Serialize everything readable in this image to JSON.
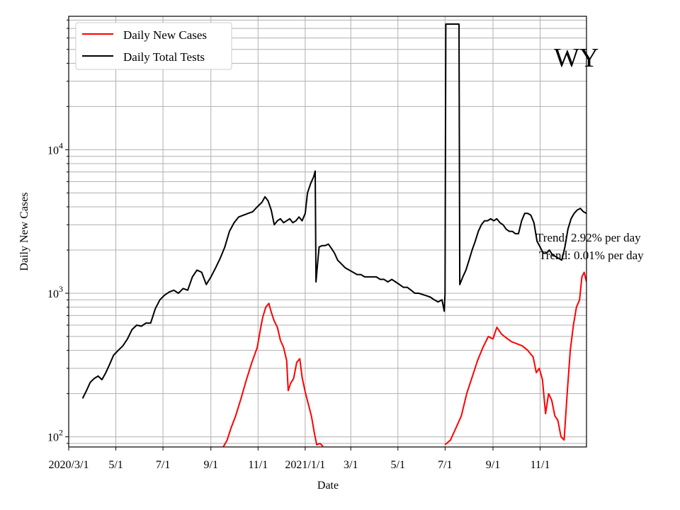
{
  "chart_data": {
    "type": "line",
    "title": "",
    "xlabel": "Date",
    "ylabel": "Daily New Cases",
    "y_scale": "log",
    "ylim": [
      85,
      85000
    ],
    "xlim": [
      "2020-03-01",
      "2021-12-31"
    ],
    "grid": true,
    "legend_position": "top-left",
    "state_label": "WY",
    "annotations": [
      "Trend: 2.92% per day",
      "Trend: 0.01% per day"
    ],
    "x_ticks": [
      {
        "date": "2020-03-01",
        "label": "2020/3/1"
      },
      {
        "date": "2020-05-01",
        "label": "5/1"
      },
      {
        "date": "2020-07-01",
        "label": "7/1"
      },
      {
        "date": "2020-09-01",
        "label": "9/1"
      },
      {
        "date": "2020-11-01",
        "label": "11/1"
      },
      {
        "date": "2021-01-01",
        "label": "2021/1/1"
      },
      {
        "date": "2021-03-01",
        "label": "3/1"
      },
      {
        "date": "2021-05-01",
        "label": "5/1"
      },
      {
        "date": "2021-07-01",
        "label": "7/1"
      },
      {
        "date": "2021-09-01",
        "label": "9/1"
      },
      {
        "date": "2021-11-01",
        "label": "11/1"
      }
    ],
    "y_ticks": [
      {
        "value": 100,
        "base": "10",
        "exp": "2"
      },
      {
        "value": 1000,
        "base": "10",
        "exp": "3"
      },
      {
        "value": 10000,
        "base": "10",
        "exp": "4"
      }
    ],
    "series": [
      {
        "name": "Daily New Cases",
        "color": "#ff0000",
        "points": [
          [
            "2020-09-17",
            85
          ],
          [
            "2020-09-22",
            95
          ],
          [
            "2020-09-27",
            115
          ],
          [
            "2020-10-03",
            140
          ],
          [
            "2020-10-10",
            185
          ],
          [
            "2020-10-17",
            250
          ],
          [
            "2020-10-24",
            330
          ],
          [
            "2020-10-31",
            420
          ],
          [
            "2020-11-04",
            560
          ],
          [
            "2020-11-07",
            680
          ],
          [
            "2020-11-11",
            800
          ],
          [
            "2020-11-15",
            850
          ],
          [
            "2020-11-18",
            740
          ],
          [
            "2020-11-22",
            640
          ],
          [
            "2020-11-26",
            580
          ],
          [
            "2020-11-30",
            470
          ],
          [
            "2020-12-04",
            420
          ],
          [
            "2020-12-08",
            340
          ],
          [
            "2020-12-10",
            210
          ],
          [
            "2020-12-13",
            235
          ],
          [
            "2020-12-17",
            255
          ],
          [
            "2020-12-21",
            330
          ],
          [
            "2020-12-25",
            350
          ],
          [
            "2020-12-28",
            260
          ],
          [
            "2021-01-01",
            205
          ],
          [
            "2021-01-05",
            170
          ],
          [
            "2021-01-09",
            140
          ],
          [
            "2021-01-13",
            105
          ],
          [
            "2021-01-16",
            88
          ],
          [
            "2021-01-20",
            90
          ],
          [
            "2021-01-24",
            86
          ]
        ]
      },
      {
        "name": "Daily New Cases",
        "color": "#ff0000",
        "points": [
          [
            "2021-07-01",
            88
          ],
          [
            "2021-07-08",
            95
          ],
          [
            "2021-07-15",
            115
          ],
          [
            "2021-07-22",
            140
          ],
          [
            "2021-07-29",
            200
          ],
          [
            "2021-08-05",
            260
          ],
          [
            "2021-08-12",
            340
          ],
          [
            "2021-08-19",
            420
          ],
          [
            "2021-08-26",
            500
          ],
          [
            "2021-09-01",
            480
          ],
          [
            "2021-09-06",
            580
          ],
          [
            "2021-09-12",
            520
          ],
          [
            "2021-09-18",
            490
          ],
          [
            "2021-09-25",
            460
          ],
          [
            "2021-10-02",
            445
          ],
          [
            "2021-10-09",
            430
          ],
          [
            "2021-10-16",
            400
          ],
          [
            "2021-10-23",
            360
          ],
          [
            "2021-10-27",
            280
          ],
          [
            "2021-10-31",
            300
          ],
          [
            "2021-11-04",
            250
          ],
          [
            "2021-11-08",
            145
          ],
          [
            "2021-11-12",
            200
          ],
          [
            "2021-11-16",
            180
          ],
          [
            "2021-11-20",
            140
          ],
          [
            "2021-11-24",
            130
          ],
          [
            "2021-11-28",
            100
          ],
          [
            "2021-12-02",
            95
          ],
          [
            "2021-12-06",
            200
          ],
          [
            "2021-12-10",
            400
          ],
          [
            "2021-12-14",
            600
          ],
          [
            "2021-12-18",
            800
          ],
          [
            "2021-12-22",
            900
          ],
          [
            "2021-12-25",
            1300
          ],
          [
            "2021-12-28",
            1400
          ],
          [
            "2021-12-31",
            1200
          ]
        ]
      },
      {
        "name": "Daily Total Tests",
        "color": "#000000",
        "points": [
          [
            "2020-03-19",
            185
          ],
          [
            "2020-03-24",
            210
          ],
          [
            "2020-03-29",
            240
          ],
          [
            "2020-04-03",
            255
          ],
          [
            "2020-04-08",
            265
          ],
          [
            "2020-04-13",
            250
          ],
          [
            "2020-04-18",
            280
          ],
          [
            "2020-04-23",
            320
          ],
          [
            "2020-04-28",
            370
          ],
          [
            "2020-05-04",
            400
          ],
          [
            "2020-05-10",
            430
          ],
          [
            "2020-05-16",
            480
          ],
          [
            "2020-05-22",
            560
          ],
          [
            "2020-05-28",
            600
          ],
          [
            "2020-06-03",
            590
          ],
          [
            "2020-06-09",
            620
          ],
          [
            "2020-06-15",
            620
          ],
          [
            "2020-06-21",
            780
          ],
          [
            "2020-06-27",
            900
          ],
          [
            "2020-07-03",
            970
          ],
          [
            "2020-07-09",
            1020
          ],
          [
            "2020-07-15",
            1050
          ],
          [
            "2020-07-21",
            1000
          ],
          [
            "2020-07-27",
            1080
          ],
          [
            "2020-08-02",
            1050
          ],
          [
            "2020-08-08",
            1300
          ],
          [
            "2020-08-14",
            1450
          ],
          [
            "2020-08-20",
            1400
          ],
          [
            "2020-08-26",
            1150
          ],
          [
            "2020-09-01",
            1300
          ],
          [
            "2020-09-07",
            1500
          ],
          [
            "2020-09-13",
            1750
          ],
          [
            "2020-09-19",
            2100
          ],
          [
            "2020-09-25",
            2700
          ],
          [
            "2020-10-01",
            3100
          ],
          [
            "2020-10-07",
            3400
          ],
          [
            "2020-10-13",
            3500
          ],
          [
            "2020-10-19",
            3600
          ],
          [
            "2020-10-25",
            3700
          ],
          [
            "2020-10-31",
            4000
          ],
          [
            "2020-11-06",
            4300
          ],
          [
            "2020-11-10",
            4700
          ],
          [
            "2020-11-14",
            4400
          ],
          [
            "2020-11-18",
            3800
          ],
          [
            "2020-11-22",
            3000
          ],
          [
            "2020-11-26",
            3200
          ],
          [
            "2020-11-30",
            3300
          ],
          [
            "2020-12-04",
            3100
          ],
          [
            "2020-12-08",
            3200
          ],
          [
            "2020-12-12",
            3300
          ],
          [
            "2020-12-16",
            3100
          ],
          [
            "2020-12-20",
            3200
          ],
          [
            "2020-12-24",
            3400
          ],
          [
            "2020-12-28",
            3200
          ],
          [
            "2021-01-01",
            3600
          ],
          [
            "2021-01-04",
            5000
          ],
          [
            "2021-01-08",
            5800
          ],
          [
            "2021-01-12",
            6500
          ],
          [
            "2021-01-14",
            7100
          ],
          [
            "2021-01-15",
            1200
          ],
          [
            "2021-01-17",
            1600
          ],
          [
            "2021-01-19",
            2100
          ],
          [
            "2021-01-23",
            2150
          ],
          [
            "2021-01-27",
            2150
          ],
          [
            "2021-01-31",
            2200
          ],
          [
            "2021-02-04",
            2050
          ],
          [
            "2021-02-08",
            1900
          ],
          [
            "2021-02-12",
            1700
          ],
          [
            "2021-02-17",
            1600
          ],
          [
            "2021-02-22",
            1500
          ],
          [
            "2021-02-27",
            1450
          ],
          [
            "2021-03-04",
            1400
          ],
          [
            "2021-03-09",
            1350
          ],
          [
            "2021-03-14",
            1350
          ],
          [
            "2021-03-19",
            1300
          ],
          [
            "2021-03-24",
            1300
          ],
          [
            "2021-03-29",
            1300
          ],
          [
            "2021-04-03",
            1300
          ],
          [
            "2021-04-08",
            1250
          ],
          [
            "2021-04-13",
            1250
          ],
          [
            "2021-04-18",
            1200
          ],
          [
            "2021-04-23",
            1250
          ],
          [
            "2021-04-28",
            1200
          ],
          [
            "2021-05-03",
            1150
          ],
          [
            "2021-05-08",
            1100
          ],
          [
            "2021-05-13",
            1100
          ],
          [
            "2021-05-18",
            1050
          ],
          [
            "2021-05-23",
            1000
          ],
          [
            "2021-05-28",
            1000
          ],
          [
            "2021-06-02",
            980
          ],
          [
            "2021-06-07",
            960
          ],
          [
            "2021-06-12",
            940
          ],
          [
            "2021-06-17",
            900
          ],
          [
            "2021-06-22",
            870
          ],
          [
            "2021-06-27",
            900
          ],
          [
            "2021-06-30",
            750
          ],
          [
            "2021-07-01",
            1000
          ],
          [
            "2021-07-02",
            75000
          ],
          [
            "2021-07-19",
            75000
          ],
          [
            "2021-07-20",
            1150
          ],
          [
            "2021-07-24",
            1300
          ],
          [
            "2021-07-28",
            1450
          ],
          [
            "2021-08-01",
            1700
          ],
          [
            "2021-08-05",
            2000
          ],
          [
            "2021-08-09",
            2300
          ],
          [
            "2021-08-13",
            2700
          ],
          [
            "2021-08-17",
            3000
          ],
          [
            "2021-08-21",
            3200
          ],
          [
            "2021-08-25",
            3200
          ],
          [
            "2021-08-29",
            3300
          ],
          [
            "2021-09-02",
            3200
          ],
          [
            "2021-09-06",
            3300
          ],
          [
            "2021-09-10",
            3100
          ],
          [
            "2021-09-14",
            3000
          ],
          [
            "2021-09-18",
            2800
          ],
          [
            "2021-09-22",
            2700
          ],
          [
            "2021-09-26",
            2700
          ],
          [
            "2021-09-30",
            2600
          ],
          [
            "2021-10-04",
            2600
          ],
          [
            "2021-10-08",
            3200
          ],
          [
            "2021-10-12",
            3600
          ],
          [
            "2021-10-16",
            3600
          ],
          [
            "2021-10-20",
            3500
          ],
          [
            "2021-10-24",
            3100
          ],
          [
            "2021-10-28",
            2300
          ],
          [
            "2021-11-01",
            2100
          ],
          [
            "2021-11-05",
            1900
          ],
          [
            "2021-11-09",
            1900
          ],
          [
            "2021-11-13",
            2000
          ],
          [
            "2021-11-17",
            1850
          ],
          [
            "2021-11-21",
            1800
          ],
          [
            "2021-11-25",
            1750
          ],
          [
            "2021-11-29",
            1700
          ],
          [
            "2021-12-03",
            2100
          ],
          [
            "2021-12-07",
            2800
          ],
          [
            "2021-12-11",
            3300
          ],
          [
            "2021-12-15",
            3600
          ],
          [
            "2021-12-19",
            3800
          ],
          [
            "2021-12-23",
            3900
          ],
          [
            "2021-12-27",
            3700
          ],
          [
            "2021-12-31",
            3600
          ]
        ]
      }
    ]
  }
}
